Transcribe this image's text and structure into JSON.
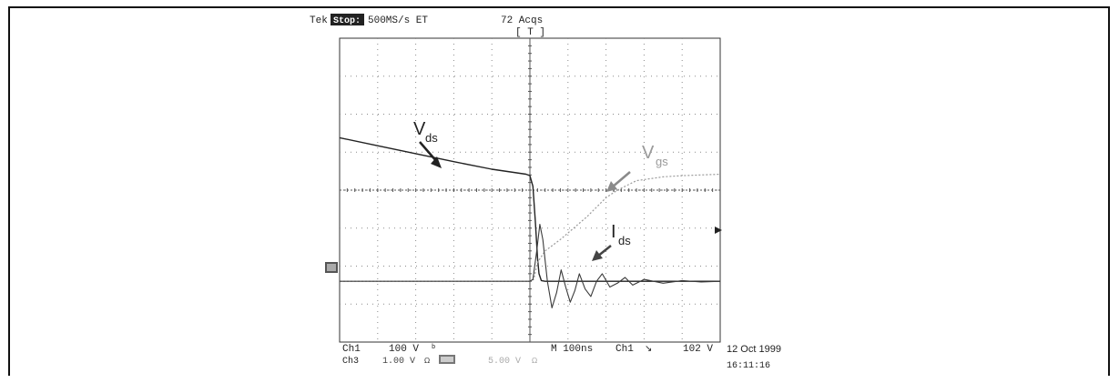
{
  "header": {
    "brand": "Tek",
    "state": "Stop:",
    "rate": "500MS/s ET",
    "acqs": "72 Acqs",
    "trig_box": "[ T ]"
  },
  "footer": {
    "line1_ch": "Ch1",
    "line1_scale": "100 V",
    "line1_bw": "b",
    "line1_time": "M 100ns",
    "line1_trig_ch": "Ch1",
    "line1_trig_slope": "↘",
    "line1_trig_level": "102 V",
    "line2_ch": "Ch3",
    "line2_scale": "1.00 V",
    "line2_suffix": "Ω",
    "line2_scale2": "5.00 V",
    "line2_suffix2": "Ω",
    "date": "12 Oct 1999",
    "time": "16:11:16"
  },
  "labels": {
    "vds_main": "V",
    "vds_sub": "ds",
    "vgs_main": "V",
    "vgs_sub": "gs",
    "ids_main": "I",
    "ids_sub": "ds"
  },
  "colors": {
    "vds": "#222222",
    "vgs": "#9a9a9a",
    "ids": "#3a3a3a",
    "grid": "#8a8a8a",
    "text": "#222222"
  },
  "chart_data": {
    "type": "line",
    "x_unit": "ns",
    "xlim": [
      -500,
      500
    ],
    "ylim": [
      -4,
      4
    ],
    "grid": true,
    "series": [
      {
        "name": "Vds",
        "x": [
          -500,
          -400,
          -300,
          -200,
          -100,
          -10,
          0,
          8,
          14,
          20,
          24,
          30,
          40,
          60,
          100,
          200,
          300,
          400,
          500
        ],
        "y": [
          1.38,
          1.17,
          0.96,
          0.75,
          0.55,
          0.42,
          0.38,
          0.1,
          -0.8,
          -1.8,
          -2.2,
          -2.38,
          -2.4,
          -2.4,
          -2.4,
          -2.4,
          -2.4,
          -2.4,
          -2.4
        ]
      },
      {
        "name": "Vgs",
        "x": [
          -500,
          -300,
          -100,
          0,
          10,
          20,
          40,
          80,
          150,
          200,
          230,
          280,
          350,
          400,
          500
        ],
        "y": [
          -2.4,
          -2.4,
          -2.4,
          -2.4,
          -2.35,
          -1.9,
          -1.6,
          -1.3,
          -0.7,
          -0.2,
          0.0,
          0.25,
          0.35,
          0.38,
          0.42
        ]
      },
      {
        "name": "Ids",
        "x": [
          -500,
          -100,
          0,
          8,
          18,
          26,
          34,
          46,
          58,
          70,
          82,
          94,
          106,
          118,
          130,
          145,
          160,
          175,
          190,
          210,
          230,
          250,
          270,
          300,
          350,
          400,
          450,
          500
        ],
        "y": [
          -2.4,
          -2.4,
          -2.4,
          -2.35,
          -1.6,
          -0.9,
          -1.3,
          -2.4,
          -3.1,
          -2.7,
          -2.1,
          -2.55,
          -2.95,
          -2.65,
          -2.2,
          -2.6,
          -2.8,
          -2.4,
          -2.2,
          -2.55,
          -2.45,
          -2.3,
          -2.5,
          -2.35,
          -2.45,
          -2.38,
          -2.42,
          -2.4
        ]
      }
    ]
  }
}
